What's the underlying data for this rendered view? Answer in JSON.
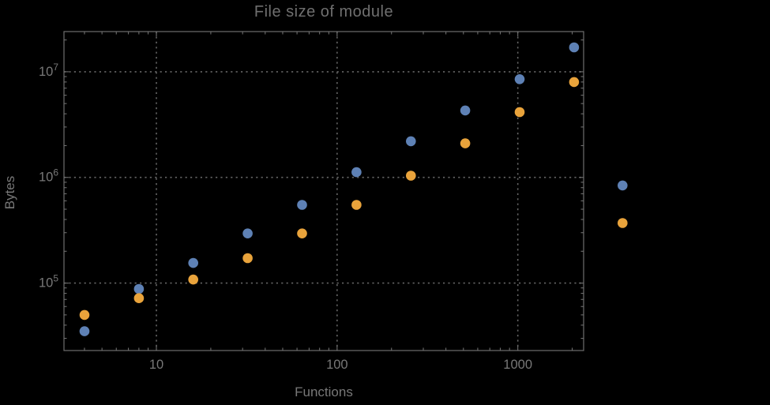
{
  "chart_data": {
    "type": "scatter",
    "title": "File size of module",
    "xlabel": "Functions",
    "ylabel": "Bytes",
    "x_scale": "log",
    "y_scale": "log",
    "x_range": [
      3.08,
      2313
    ],
    "y_range": [
      23000,
      24000000
    ],
    "grid": "dotted gridlines at decade ticks, frame on all four sides",
    "legend": "none",
    "x_ticks": [
      {
        "value": 10,
        "label": "10"
      },
      {
        "value": 100,
        "label": "100"
      },
      {
        "value": 1000,
        "label": "1000"
      }
    ],
    "y_ticks": [
      {
        "value": 100000,
        "mantissa": "10",
        "exponent": "5"
      },
      {
        "value": 1000000,
        "mantissa": "10",
        "exponent": "6"
      },
      {
        "value": 10000000,
        "mantissa": "10",
        "exponent": "7"
      }
    ],
    "x": [
      4,
      8,
      16,
      32,
      64,
      128,
      256,
      512,
      1024,
      2048,
      3800
    ],
    "series": [
      {
        "name": "series-1-blue",
        "color": "#5e81b5",
        "values": [
          35000,
          88000,
          155000,
          295000,
          550000,
          1120000,
          2200000,
          4300000,
          8500000,
          17000000,
          840000
        ]
      },
      {
        "name": "series-2-orange",
        "color": "#e9a33b",
        "values": [
          50000,
          72000,
          108000,
          172000,
          295000,
          550000,
          1040000,
          2100000,
          4150000,
          8000000,
          370000
        ]
      }
    ],
    "point_radius": 6.3,
    "clip_points_to_frame": false
  },
  "style": {
    "background": "#000000",
    "frame_color": "#6e6e6e",
    "grid_color": "#646464",
    "text_color": "#787878",
    "title_color": "#6f6f6f"
  }
}
